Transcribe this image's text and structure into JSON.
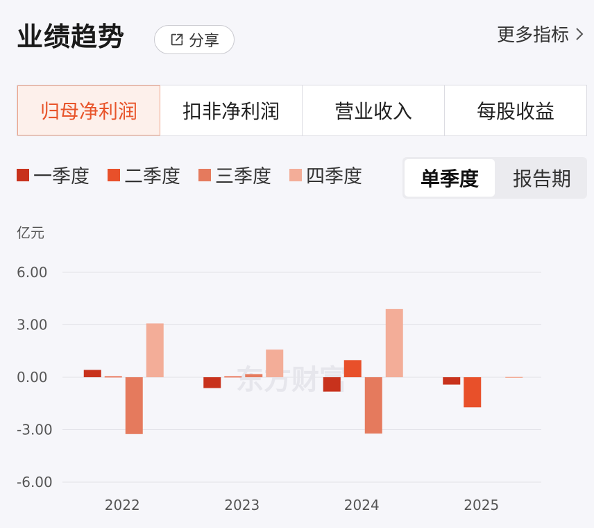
{
  "header": {
    "title": "业绩趋势",
    "share_label": "分享",
    "more_label": "更多指标"
  },
  "tabs": [
    {
      "label": "归母净利润",
      "active": true
    },
    {
      "label": "扣非净利润",
      "active": false
    },
    {
      "label": "营业收入",
      "active": false
    },
    {
      "label": "每股收益",
      "active": false
    }
  ],
  "period_toggle": {
    "options": [
      "单季度",
      "报告期"
    ],
    "selected": "单季度"
  },
  "watermark": "东方财富",
  "colors": {
    "accent": "#e8542a",
    "q1": "#c8321c",
    "q2": "#e8502a",
    "q3": "#e57a5d",
    "q4": "#f3ad98"
  },
  "chart_data": {
    "type": "bar",
    "unit": "亿元",
    "categories": [
      "2022",
      "2023",
      "2024",
      "2025"
    ],
    "series": [
      {
        "name": "一季度",
        "values": [
          0.42,
          -0.62,
          -0.82,
          -0.42
        ]
      },
      {
        "name": "二季度",
        "values": [
          0.05,
          0.05,
          0.98,
          -1.72
        ]
      },
      {
        "name": "三季度",
        "values": [
          -3.25,
          0.18,
          -3.22,
          null
        ]
      },
      {
        "name": "四季度",
        "values": [
          3.08,
          1.58,
          3.9,
          0.02
        ]
      }
    ],
    "yticks": [
      "6.00",
      "3.00",
      "0.00",
      "-3.00",
      "-6.00"
    ],
    "ylim": [
      -6,
      6
    ],
    "grid": true,
    "legend_position": "top-left"
  }
}
